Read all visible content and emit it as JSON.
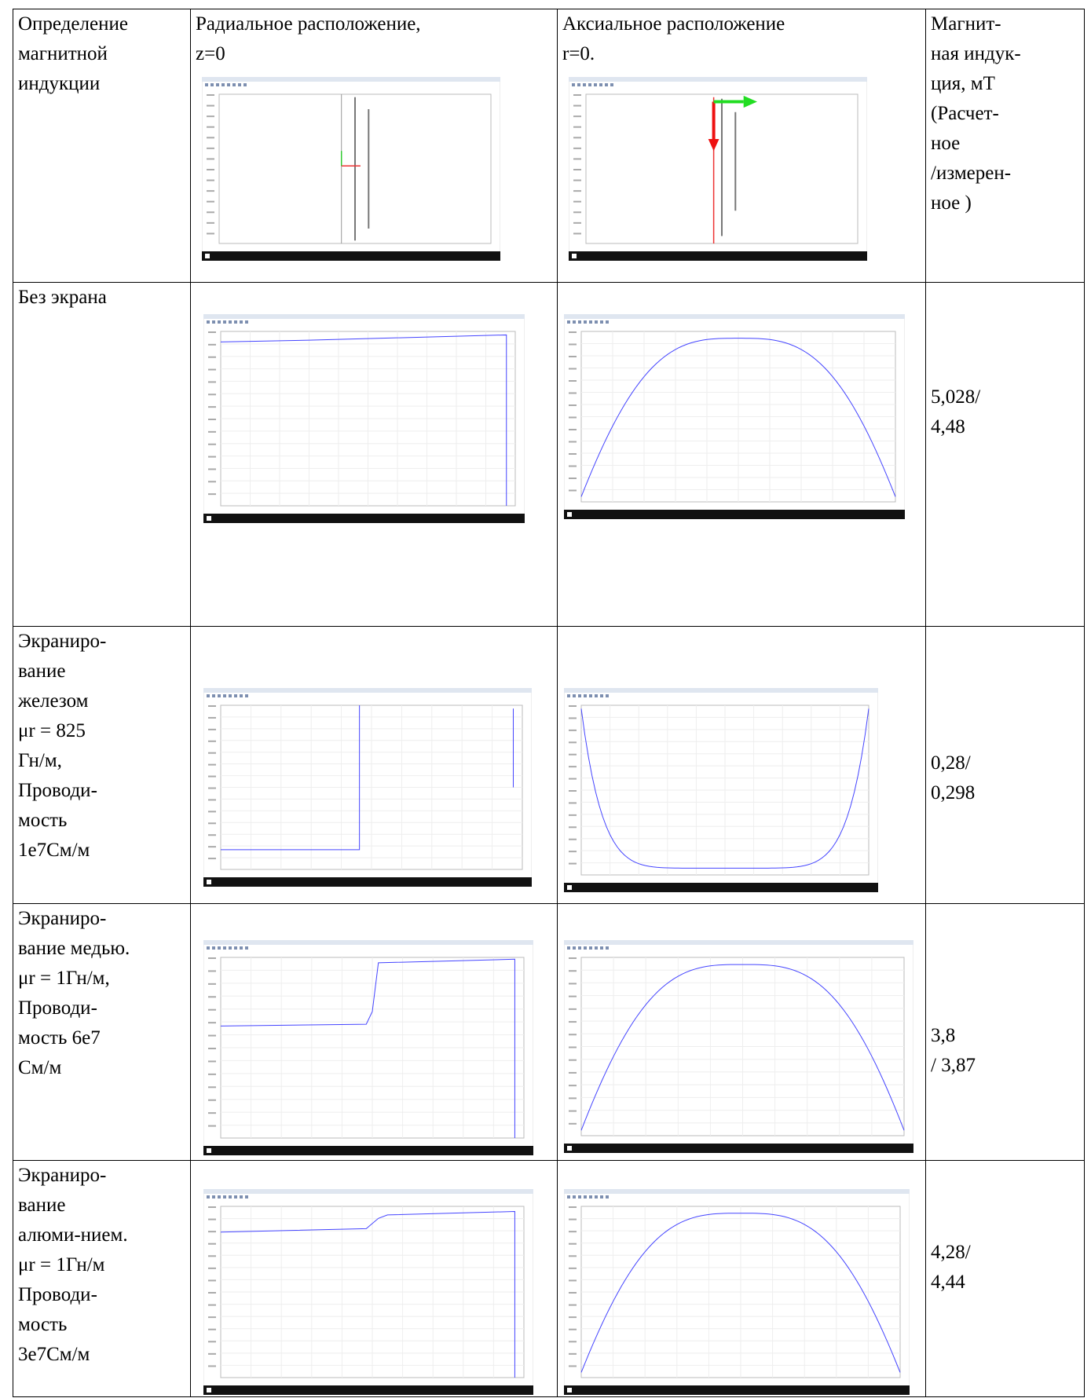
{
  "table": {
    "header": [
      "Определение\nмагнитной\nиндукции",
      "Радиальное расположение,\nz=0",
      "Аксиальное расположение\nr=0.",
      "Магнит-\nная индук-\nция, мТ\n(Расчет-\nное\n/измерен-\nное )"
    ],
    "rows": [
      [
        "Без экрана",
        "5,028/\n4,48"
      ],
      [
        "Экраниро-\nвание\nжелезом\nμr = 825\nГн/м,\nПроводи-\nмость\n1e7См/м",
        "0,28/\n0,298"
      ],
      [
        "Экраниро-\nвание медью.\nμr = 1Гн/м,\nПроводи-\nмость 6e7\nСм/м",
        "3,8\n/ 3,87"
      ],
      [
        "Экраниро-\nвание\nалюми-нием.\nμr = 1Гн/м\nПроводи-\nмость\n3e7См/м",
        "4,28/\n4,44"
      ]
    ]
  }
}
